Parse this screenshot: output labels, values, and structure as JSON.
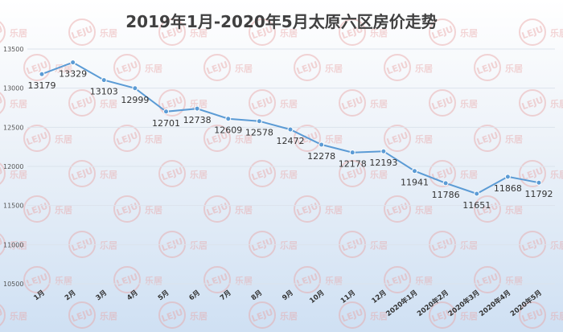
{
  "chart_data": {
    "type": "line",
    "title": "2019年1月-2020年5月太原六区房价走势",
    "xlabel": "",
    "ylabel": "",
    "categories": [
      "1月",
      "2月",
      "3月",
      "4月",
      "5月",
      "6月",
      "7月",
      "8月",
      "9月",
      "10月",
      "11月",
      "12月",
      "2020年1月",
      "2020年2月",
      "2020年3月",
      "2020年4月",
      "2020年5月"
    ],
    "series": [
      {
        "values": [
          13179,
          13329,
          13103,
          12999,
          12701,
          12738,
          12609,
          12578,
          12472,
          12278,
          12178,
          12193,
          11941,
          11786,
          11651,
          11868,
          11792
        ]
      }
    ],
    "ylim": [
      10500,
      13500
    ],
    "yticks": [
      10500,
      11000,
      11500,
      12000,
      12500,
      13000,
      13500
    ],
    "grid": true,
    "legend": "none",
    "colors": {
      "line": "#5b9bd5",
      "watermark": "#e9a3a3"
    },
    "watermark": {
      "logo_text": "LEJU",
      "text": "乐居"
    }
  }
}
